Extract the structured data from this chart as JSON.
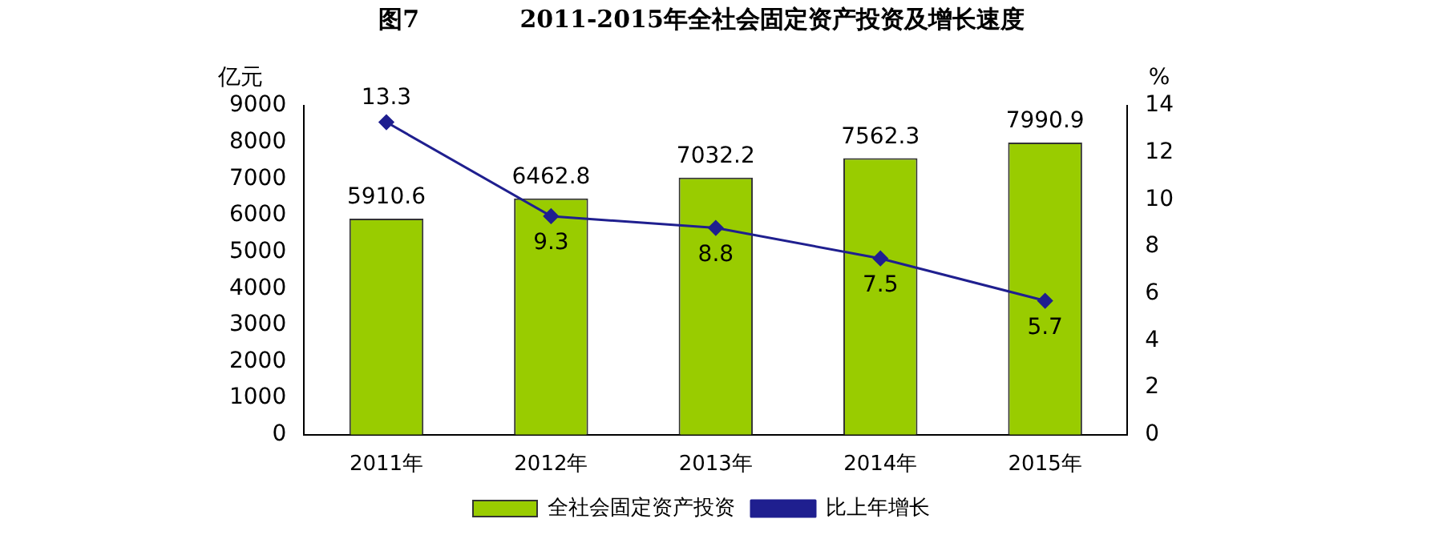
{
  "chart_data": {
    "type": "bar",
    "title": "图7            2011-2015年全社会固定资产投资及增长速度",
    "ylabel": "亿元",
    "y2label": "%",
    "categories": [
      "2011年",
      "2012年",
      "2013年",
      "2014年",
      "2015年"
    ],
    "series": [
      {
        "name": "全社会固定资产投资",
        "color": "#99cc00",
        "values": [
          5910.6,
          6462.8,
          7032.2,
          7562.3,
          7990.9
        ]
      },
      {
        "name": "比上年增长",
        "type": "line",
        "axis": "y2",
        "color": "#1f1f8f",
        "values": [
          13.3,
          9.3,
          8.8,
          7.5,
          5.7
        ]
      }
    ],
    "ylim": [
      0,
      9000
    ],
    "yticks": [
      0,
      1000,
      2000,
      3000,
      4000,
      5000,
      6000,
      7000,
      8000,
      9000
    ],
    "y2lim": [
      0,
      14
    ],
    "y2ticks": [
      0,
      2,
      4,
      6,
      8,
      10,
      12,
      14
    ],
    "data_labels": true,
    "grid": false,
    "legend": "bottom",
    "marker": "diamond",
    "line_style": "solid"
  }
}
